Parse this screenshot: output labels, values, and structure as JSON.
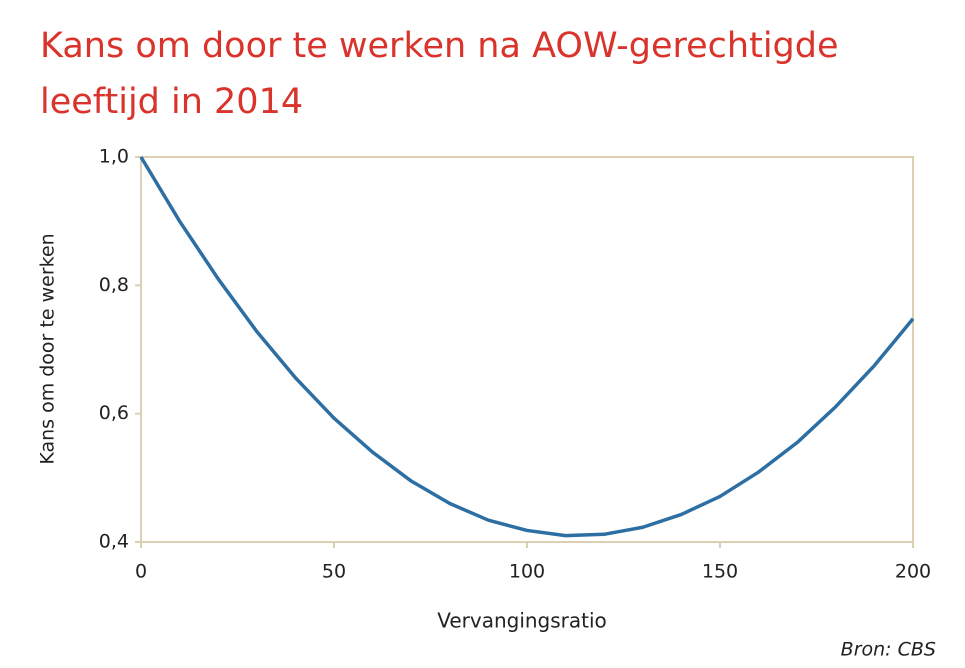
{
  "chart_data": {
    "type": "line",
    "title": "Kans om door te werken na AOW-gerechtigde leeftijd in 2014",
    "xlabel": "Vervangingsratio",
    "ylabel": "Kans om door te werken",
    "source": "Bron: CBS",
    "x": [
      0,
      10,
      20,
      30,
      40,
      50,
      60,
      70,
      80,
      90,
      100,
      110,
      120,
      130,
      140,
      150,
      160,
      170,
      180,
      190,
      200
    ],
    "series": [
      {
        "name": "Kans om door te werken",
        "color": "#2d6ea3",
        "values": [
          1.0,
          0.9,
          0.81,
          0.728,
          0.656,
          0.593,
          0.54,
          0.495,
          0.46,
          0.434,
          0.418,
          0.41,
          0.412,
          0.423,
          0.443,
          0.471,
          0.509,
          0.555,
          0.611,
          0.675,
          0.748
        ]
      }
    ],
    "xlim": [
      0,
      200
    ],
    "xticks": [
      0,
      50,
      100,
      150,
      200
    ],
    "ylim": [
      0.4,
      1.0
    ],
    "yticks": [
      {
        "value": 0.4,
        "label": "0,4"
      },
      {
        "value": 0.6,
        "label": "0,6"
      },
      {
        "value": 0.8,
        "label": "0,8"
      },
      {
        "value": 1.0,
        "label": "1,0"
      }
    ]
  }
}
